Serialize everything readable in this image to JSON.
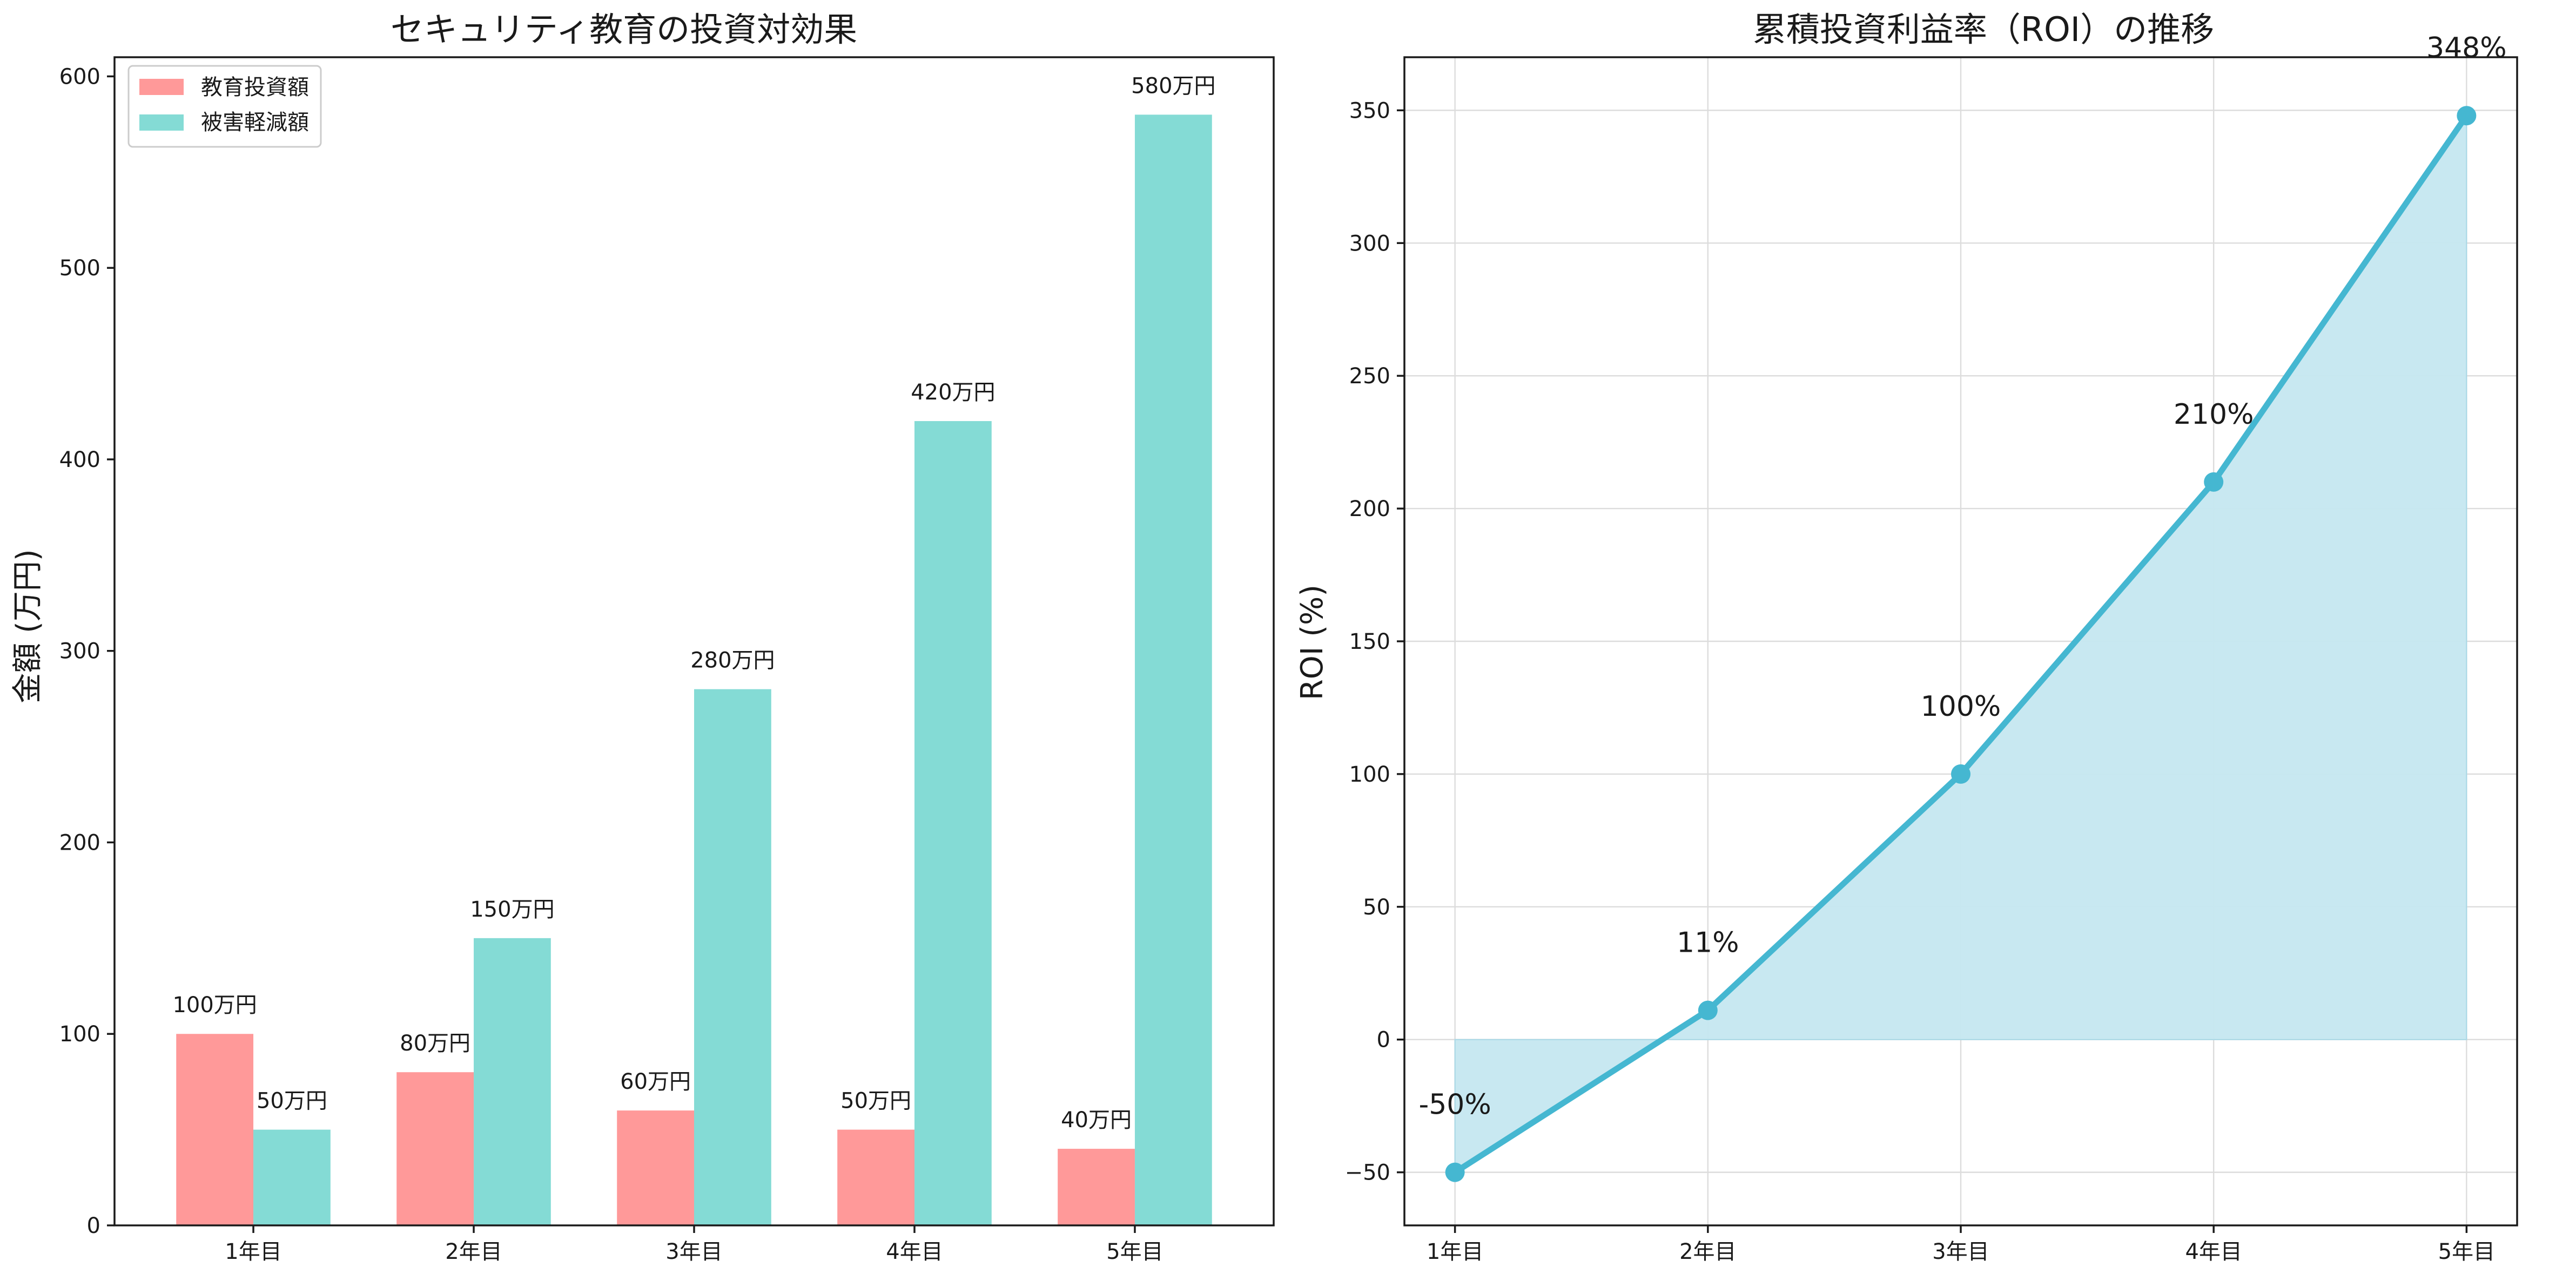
{
  "chart_data": [
    {
      "type": "bar",
      "title": "セキュリティ教育の投資対効果",
      "xlabel": "",
      "ylabel": "金額 (万円)",
      "categories": [
        "1年目",
        "2年目",
        "3年目",
        "4年目",
        "5年目"
      ],
      "series": [
        {
          "name": "教育投資額",
          "color": "#ff9999",
          "values": [
            100,
            80,
            60,
            50,
            40
          ],
          "labels": [
            "100万円",
            "80万円",
            "60万円",
            "50万円",
            "40万円"
          ]
        },
        {
          "name": "被害軽減額",
          "color": "#84dbd5",
          "values": [
            50,
            150,
            280,
            420,
            580
          ],
          "labels": [
            "50万円",
            "150万円",
            "280万円",
            "420万円",
            "580万円"
          ]
        }
      ],
      "ylim": [
        0,
        610
      ],
      "yticks": [
        0,
        100,
        200,
        300,
        400,
        500,
        600
      ],
      "grid": false,
      "legend_position": "top-left"
    },
    {
      "type": "area",
      "title": "累積投資利益率（ROI）の推移",
      "xlabel": "",
      "ylabel": "ROI (%)",
      "categories": [
        "1年目",
        "2年目",
        "3年目",
        "4年目",
        "5年目"
      ],
      "series": [
        {
          "color": "#45b7d1",
          "fill_color": "#c5e7f0",
          "values": [
            -50,
            11,
            100,
            210,
            348
          ],
          "labels": [
            "-50%",
            "11%",
            "100%",
            "210%",
            "348%"
          ]
        }
      ],
      "ylim": [
        -70,
        370
      ],
      "yticks": [
        -50,
        0,
        50,
        100,
        150,
        200,
        250,
        300,
        350
      ],
      "ytick_labels": [
        "−50",
        "0",
        "50",
        "100",
        "150",
        "200",
        "250",
        "300",
        "350"
      ],
      "grid": true
    }
  ]
}
